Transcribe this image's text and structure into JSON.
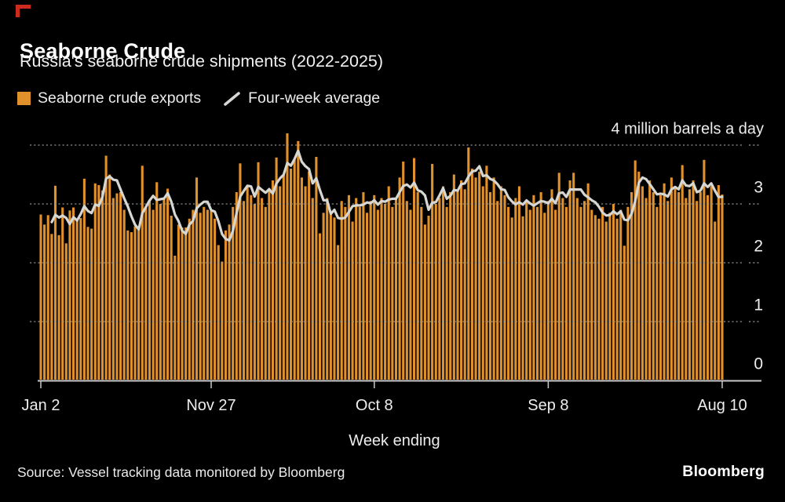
{
  "header": {
    "title": "Seaborne Crude",
    "subtitle": "Russia's seaborne crude shipments (2022-2025)"
  },
  "legend": [
    {
      "label": "Seaborne crude exports",
      "icon": "bar-swatch-icon",
      "color": "#E0912C"
    },
    {
      "label": "Four-week average",
      "icon": "line-swatch-icon",
      "color": "#D6D6D2"
    }
  ],
  "chart_data": {
    "type": "bar",
    "title": "Seaborne Crude",
    "subtitle": "Russia's seaborne crude shipments (2022-2025)",
    "xlabel": "Week ending",
    "ylabel": "million barrels a day",
    "ylim": [
      0,
      4
    ],
    "grid": "dotted horizontal",
    "legend_position": "top-left",
    "top_axis_label": "4 million barrels a day",
    "y_tick_labels": [
      "0",
      "1",
      "2",
      "3"
    ],
    "x_tick_labels": [
      "Jan 2",
      "Nov 27",
      "Oct 8",
      "Sep 8",
      "Aug 10"
    ],
    "x_tick_weeks": [
      0,
      47,
      92,
      140,
      188
    ],
    "x_unit": "week index from week ending Jan 2, 2022 to week ending Aug 10, 2025",
    "series": [
      {
        "name": "Seaborne crude exports",
        "type": "bar",
        "color": "#E0912C",
        "values": [
          2.82,
          2.65,
          2.81,
          2.49,
          3.31,
          2.47,
          2.94,
          2.33,
          2.89,
          2.94,
          2.72,
          2.76,
          3.43,
          2.61,
          2.58,
          3.35,
          3.32,
          3.23,
          3.82,
          3.5,
          3.1,
          3.18,
          3.2,
          2.9,
          2.55,
          2.52,
          2.62,
          2.58,
          3.65,
          2.95,
          3.05,
          2.9,
          3.37,
          3.0,
          3.1,
          3.26,
          2.8,
          2.12,
          2.65,
          2.6,
          2.6,
          2.75,
          2.9,
          3.45,
          2.85,
          2.95,
          2.9,
          2.88,
          2.75,
          2.3,
          2.02,
          2.55,
          2.65,
          2.95,
          3.2,
          3.69,
          3.05,
          3.3,
          3.15,
          3.0,
          3.71,
          3.1,
          2.95,
          3.25,
          3.4,
          3.79,
          3.3,
          3.5,
          4.2,
          3.6,
          3.75,
          4.07,
          3.45,
          3.3,
          3.55,
          3.1,
          3.8,
          2.5,
          2.85,
          3.1,
          2.88,
          2.77,
          2.3,
          3.05,
          2.95,
          3.15,
          2.7,
          3.1,
          2.95,
          3.2,
          2.85,
          3.05,
          3.15,
          2.9,
          3.1,
          3.0,
          3.3,
          2.95,
          3.1,
          3.45,
          3.72,
          3.05,
          2.9,
          3.78,
          3.2,
          2.95,
          2.65,
          2.8,
          3.68,
          3.0,
          3.1,
          3.3,
          2.95,
          3.2,
          3.5,
          3.25,
          3.4,
          3.25,
          3.96,
          3.6,
          3.45,
          3.55,
          3.3,
          3.65,
          3.2,
          3.45,
          3.05,
          3.3,
          3.15,
          2.95,
          2.77,
          3.1,
          3.3,
          2.79,
          3.05,
          2.9,
          3.15,
          2.95,
          3.2,
          2.85,
          3.05,
          3.25,
          2.9,
          3.53,
          3.1,
          2.95,
          3.4,
          3.53,
          3.1,
          2.95,
          3.05,
          3.35,
          2.9,
          2.81,
          2.75,
          2.95,
          2.7,
          2.85,
          3.0,
          2.75,
          2.9,
          2.29,
          2.95,
          3.2,
          3.74,
          3.55,
          3.3,
          3.1,
          3.4,
          3.2,
          2.95,
          3.15,
          3.35,
          3.05,
          3.45,
          3.3,
          3.2,
          3.66,
          3.1,
          3.25,
          3.4,
          3.05,
          3.2,
          3.75,
          3.15,
          3.3,
          2.7,
          3.32,
          3.16
        ]
      },
      {
        "name": "Four-week average",
        "type": "line",
        "color": "#D6D6D2",
        "derived": "trailing 4-week average of Seaborne crude exports"
      }
    ]
  },
  "footer": {
    "source": "Source: Vessel tracking data monitored by Bloomberg",
    "brand": "Bloomberg"
  },
  "colors": {
    "background": "#000000",
    "bar": "#E0912C",
    "line": "#D6D6D2",
    "grid": "#929292",
    "axis": "#C9C9C9",
    "text": "#EDEDED",
    "accent_red": "#CE2B1F"
  }
}
